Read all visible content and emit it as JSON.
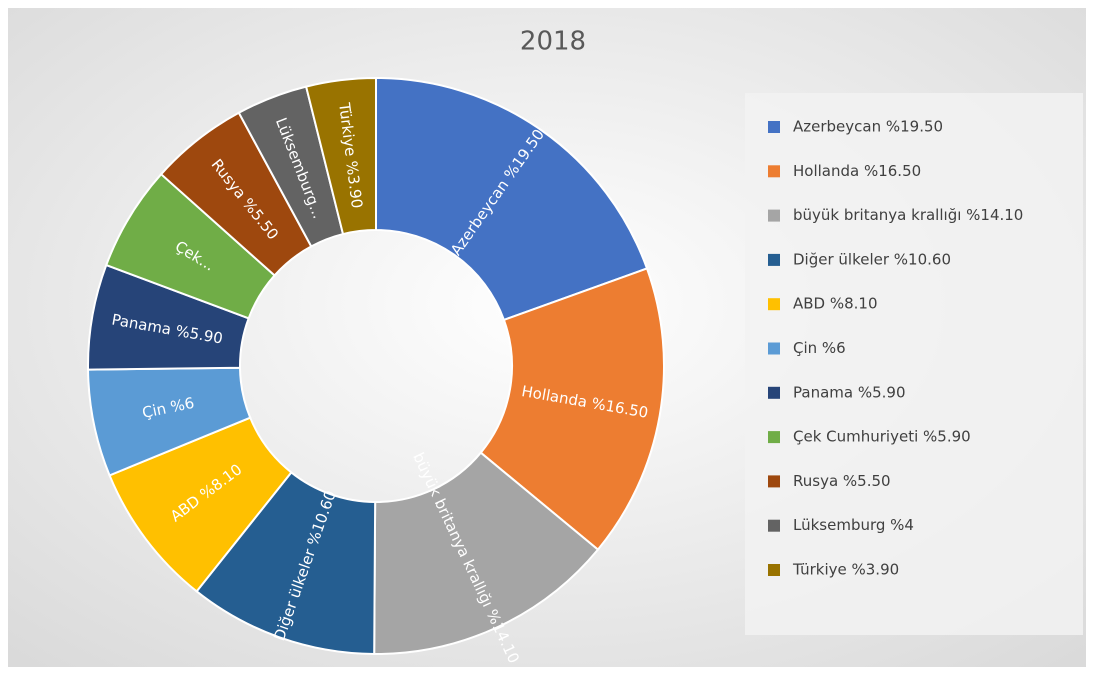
{
  "chart_data": {
    "type": "donut",
    "title": "2018",
    "categories": [
      "Azerbeycan %19.50",
      "Hollanda %16.50",
      "büyük britanya krallığı %14.10",
      "Diğer ülkeler %10.60",
      "ABD %8.10",
      "Çin %6",
      "Panama %5.90",
      "Çek Cumhuriyeti %5.90",
      "Rusya %5.50",
      "Lüksemburg %4",
      "Türkiye %3.90"
    ],
    "slice_labels": [
      "Azerbeycan %19.50",
      "Hollanda %16.50",
      "büyük britanya krallığı %14.10",
      "Diğer ülkeler %10.60",
      "ABD %8.10",
      "Çin %6",
      "Panama %5.90",
      "Çek...",
      "Rusya %5.50",
      "Lüksemburg...",
      "Türkiye %3.90"
    ],
    "values": [
      19.5,
      16.5,
      14.1,
      10.6,
      8.1,
      6,
      5.9,
      5.9,
      5.5,
      4,
      3.9
    ],
    "colors": [
      "#4472c4",
      "#ed7d31",
      "#a5a5a5",
      "#255e91",
      "#ffc000",
      "#5b9bd5",
      "#264478",
      "#70ad47",
      "#9e480e",
      "#636363",
      "#997300"
    ],
    "legend": "right"
  }
}
